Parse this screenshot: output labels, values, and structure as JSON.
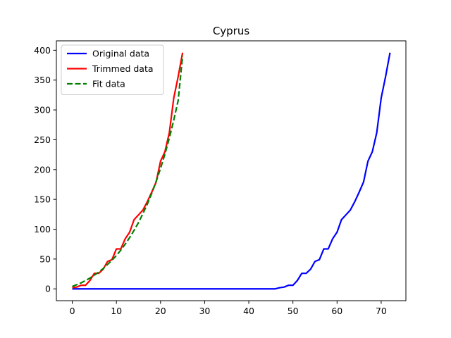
{
  "chart_data": {
    "type": "line",
    "title": "Cyprus",
    "xlabel": "",
    "ylabel": "",
    "xlim": [
      -3.6,
      75.6
    ],
    "ylim": [
      -19.8,
      415.8
    ],
    "xticks": [
      0,
      10,
      20,
      30,
      40,
      50,
      60,
      70
    ],
    "yticks": [
      0,
      50,
      100,
      150,
      200,
      250,
      300,
      350,
      400
    ],
    "grid": false,
    "legend_position": "top-left",
    "series": [
      {
        "name": "Original data",
        "color": "#0000ff",
        "style": "solid",
        "x": [
          0,
          1,
          2,
          3,
          4,
          5,
          6,
          7,
          8,
          9,
          10,
          11,
          12,
          13,
          14,
          15,
          16,
          17,
          18,
          19,
          20,
          21,
          22,
          23,
          24,
          25,
          26,
          27,
          28,
          29,
          30,
          31,
          32,
          33,
          34,
          35,
          36,
          37,
          38,
          39,
          40,
          41,
          42,
          43,
          44,
          45,
          46,
          47,
          48,
          49,
          50,
          51,
          52,
          53,
          54,
          55,
          56,
          57,
          58,
          59,
          60,
          61,
          62,
          63,
          64,
          65,
          66,
          67,
          68,
          69,
          70,
          71,
          72
        ],
        "y": [
          0,
          0,
          0,
          0,
          0,
          0,
          0,
          0,
          0,
          0,
          0,
          0,
          0,
          0,
          0,
          0,
          0,
          0,
          0,
          0,
          0,
          0,
          0,
          0,
          0,
          0,
          0,
          0,
          0,
          0,
          0,
          0,
          0,
          0,
          0,
          0,
          0,
          0,
          0,
          0,
          0,
          0,
          0,
          0,
          0,
          0,
          0,
          2,
          3,
          6,
          6,
          14,
          26,
          26,
          33,
          46,
          49,
          67,
          67,
          84,
          95,
          116,
          124,
          132,
          146,
          162,
          179,
          214,
          230,
          262,
          320,
          356,
          396
        ]
      },
      {
        "name": "Trimmed data",
        "color": "#ff0000",
        "style": "solid",
        "x": [
          0,
          1,
          2,
          3,
          4,
          5,
          6,
          7,
          8,
          9,
          10,
          11,
          12,
          13,
          14,
          15,
          16,
          17,
          18,
          19,
          20,
          21,
          22,
          23,
          24,
          25
        ],
        "y": [
          2,
          3,
          6,
          6,
          14,
          26,
          26,
          33,
          46,
          49,
          67,
          67,
          84,
          95,
          116,
          124,
          132,
          146,
          162,
          179,
          214,
          230,
          262,
          320,
          356,
          396
        ]
      },
      {
        "name": "Fit data",
        "color": "#008000",
        "style": "dashed",
        "x": [
          0,
          1,
          2,
          3,
          4,
          5,
          6,
          7,
          8,
          9,
          10,
          11,
          12,
          13,
          14,
          15,
          16,
          17,
          18,
          19,
          20,
          21,
          22,
          23,
          24,
          25
        ],
        "y": [
          4,
          7,
          10,
          14,
          18,
          23,
          28,
          34,
          41,
          48,
          56,
          65,
          75,
          86,
          98,
          111,
          126,
          142,
          160,
          180,
          202,
          226,
          253,
          283,
          316,
          391
        ]
      }
    ]
  }
}
